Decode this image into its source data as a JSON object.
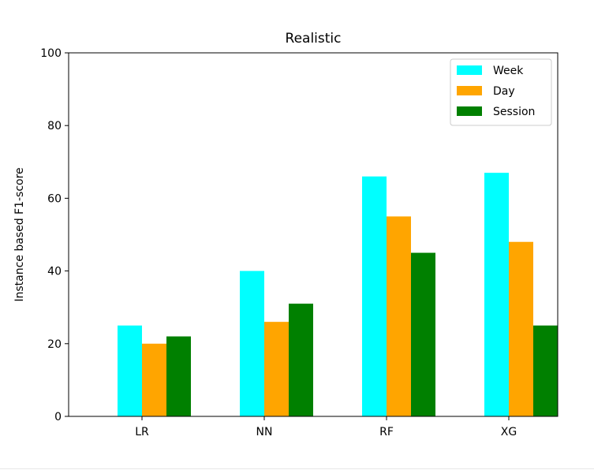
{
  "chart_data": {
    "type": "bar",
    "title": "Realistic",
    "xlabel": "",
    "ylabel": "Instance based F1-score",
    "ylim": [
      0,
      100
    ],
    "yticks": [
      0,
      20,
      40,
      60,
      80,
      100
    ],
    "categories": [
      "LR",
      "NN",
      "RF",
      "XG"
    ],
    "series": [
      {
        "name": "Week",
        "color": "#00ffff",
        "values": [
          25,
          40,
          66,
          67
        ]
      },
      {
        "name": "Day",
        "color": "#ffa500",
        "values": [
          20,
          26,
          55,
          48
        ]
      },
      {
        "name": "Session",
        "color": "#008000",
        "values": [
          22,
          31,
          45,
          25
        ]
      }
    ],
    "grid": false,
    "legend_position": "top-right"
  }
}
